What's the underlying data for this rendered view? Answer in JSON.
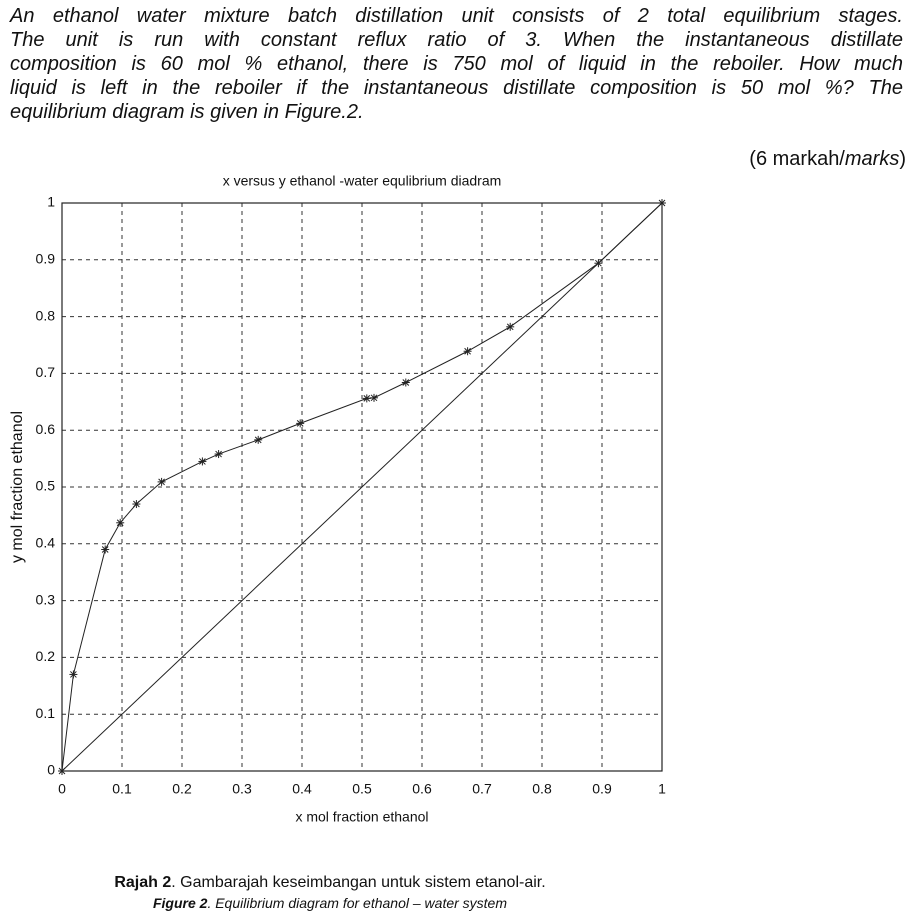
{
  "question": {
    "lines": [
      "An ethanol water mixture batch distillation unit consists of 2 total equilibrium stages.",
      "The unit is run with constant reflux ratio of 3. When the instantaneous distillate",
      "composition is 60 mol % ethanol, there is 750 mol of liquid in the reboiler. How much",
      "liquid is left in the reboiler if the instantaneous distillate composition is 50 mol %? The",
      "equilibrium diagram is given in Figure.2."
    ]
  },
  "marks": {
    "prefix": "(6 markah/",
    "italic": "marks",
    "suffix": ")"
  },
  "chart_data": {
    "type": "line",
    "title": "x versus y ethanol -water equlibrium diadram",
    "xlabel": "x mol fraction ethanol",
    "ylabel": "y mol fraction ethanol",
    "xlim": [
      0,
      1
    ],
    "ylim": [
      0,
      1
    ],
    "xticks": [
      0,
      0.1,
      0.2,
      0.3,
      0.4,
      0.5,
      0.6,
      0.7,
      0.8,
      0.9,
      1
    ],
    "yticks": [
      0,
      0.1,
      0.2,
      0.3,
      0.4,
      0.5,
      0.6,
      0.7,
      0.8,
      0.9,
      1
    ],
    "grid": true,
    "series": [
      {
        "color": "#222",
        "marker": "asterisk",
        "x": [
          0,
          0.019,
          0.072,
          0.097,
          0.124,
          0.166,
          0.234,
          0.261,
          0.327,
          0.397,
          0.508,
          0.52,
          0.573,
          0.676,
          0.747,
          0.894,
          1
        ],
        "values": [
          0,
          0.17,
          0.39,
          0.437,
          0.47,
          0.509,
          0.545,
          0.558,
          0.583,
          0.612,
          0.656,
          0.657,
          0.684,
          0.739,
          0.782,
          0.894,
          1
        ]
      },
      {
        "color": "#222",
        "x": [
          0,
          1
        ],
        "values": [
          0,
          1
        ]
      }
    ]
  },
  "caption": {
    "rajah_label": "Rajah 2",
    "rajah_text": ". Gambarajah keseimbangan untuk sistem etanol-air.",
    "figure_label": "Figure 2",
    "figure_text": ". Equilibrium diagram for ethanol – water system"
  }
}
